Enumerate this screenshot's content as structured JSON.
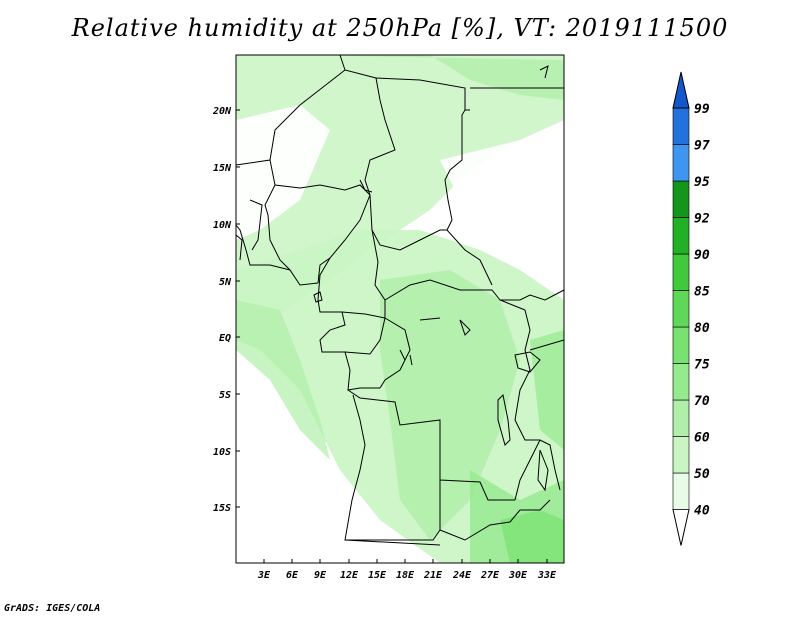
{
  "title": "Relative humidity at 250hPa [%], VT: 2019111500",
  "credit": "GrADS: IGES/COLA",
  "map": {
    "lon_labels": [
      "3E",
      "6E",
      "9E",
      "12E",
      "15E",
      "18E",
      "21E",
      "24E",
      "27E",
      "30E",
      "33E"
    ],
    "lat_labels": [
      "20N",
      "15N",
      "10N",
      "5N",
      "EQ",
      "5S",
      "10S",
      "15S"
    ]
  },
  "colorbar": {
    "levels": [
      "40",
      "50",
      "60",
      "70",
      "75",
      "80",
      "85",
      "90",
      "92",
      "95",
      "97",
      "99"
    ],
    "colors": [
      "#ffffff",
      "#e8fbe6",
      "#c9f5c3",
      "#b0efaa",
      "#96ea8e",
      "#78e270",
      "#5fd858",
      "#40c93b",
      "#22b025",
      "#14961c",
      "#3f96f0",
      "#2272de",
      "#1456cc"
    ]
  }
}
